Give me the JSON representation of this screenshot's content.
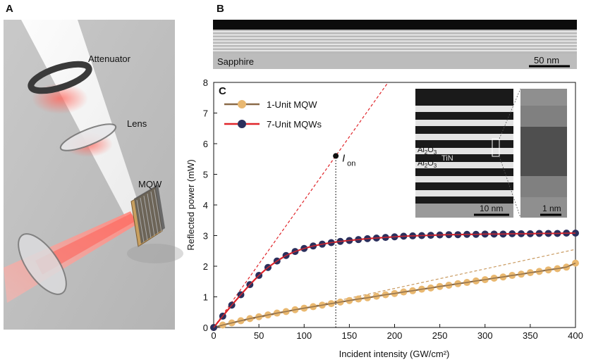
{
  "panel_a": {
    "letter": "A",
    "labels": {
      "attenuator": "Attenuator",
      "lens": "Lens",
      "mqw": "MQW"
    }
  },
  "panel_b": {
    "letter": "B",
    "substrate_label": "Sapphire",
    "scalebar_label": "50 nm"
  },
  "panel_c": {
    "letter": "C",
    "inset": {
      "layer_labels": [
        "Al2O3",
        "TiN",
        "Al2O3"
      ],
      "scalebar_left": "10 nm",
      "scalebar_right": "1 nm"
    }
  },
  "chart_data": {
    "type": "line",
    "xlabel": "Incident intensity (GW/cm²)",
    "ylabel": "Reflected power (mW)",
    "xlim": [
      0,
      400
    ],
    "ylim": [
      0,
      8
    ],
    "xticks": [
      0,
      50,
      100,
      150,
      200,
      250,
      300,
      350,
      400
    ],
    "yticks": [
      0,
      1,
      2,
      3,
      4,
      5,
      6,
      7,
      8
    ],
    "grid": false,
    "legend_position": "top-left",
    "annotation": {
      "label": "I",
      "subscript": "on",
      "x": 135,
      "y": 5.6
    },
    "series": [
      {
        "name": "1-Unit MQW",
        "color": "#e9b870",
        "line_color": "#8a6a48",
        "marker": "circle",
        "x": [
          0,
          10,
          20,
          30,
          40,
          50,
          60,
          70,
          80,
          90,
          100,
          110,
          120,
          130,
          140,
          150,
          160,
          170,
          180,
          190,
          200,
          210,
          220,
          230,
          240,
          250,
          260,
          270,
          280,
          290,
          300,
          310,
          320,
          330,
          340,
          350,
          360,
          370,
          380,
          390,
          400
        ],
        "values": [
          0,
          0.08,
          0.15,
          0.22,
          0.29,
          0.35,
          0.41,
          0.47,
          0.52,
          0.58,
          0.63,
          0.68,
          0.73,
          0.78,
          0.83,
          0.88,
          0.93,
          0.97,
          1.02,
          1.07,
          1.11,
          1.16,
          1.2,
          1.25,
          1.29,
          1.34,
          1.38,
          1.43,
          1.47,
          1.52,
          1.56,
          1.61,
          1.65,
          1.7,
          1.74,
          1.79,
          1.83,
          1.88,
          1.92,
          1.97,
          2.1
        ]
      },
      {
        "name": "7-Unit MQWs",
        "color": "#2b2f5c",
        "line_color": "#e0252a",
        "marker": "circle",
        "x": [
          0,
          10,
          20,
          30,
          40,
          50,
          60,
          70,
          80,
          90,
          100,
          110,
          120,
          130,
          140,
          150,
          160,
          170,
          180,
          190,
          200,
          210,
          220,
          230,
          240,
          250,
          260,
          270,
          280,
          290,
          300,
          310,
          320,
          330,
          340,
          350,
          360,
          370,
          380,
          390,
          400
        ],
        "values": [
          0,
          0.37,
          0.73,
          1.07,
          1.4,
          1.7,
          1.96,
          2.17,
          2.35,
          2.48,
          2.58,
          2.66,
          2.72,
          2.77,
          2.81,
          2.84,
          2.87,
          2.9,
          2.92,
          2.94,
          2.96,
          2.98,
          2.99,
          3.0,
          3.01,
          3.02,
          3.03,
          3.03,
          3.04,
          3.04,
          3.05,
          3.05,
          3.05,
          3.06,
          3.06,
          3.06,
          3.07,
          3.07,
          3.07,
          3.08,
          3.08
        ]
      }
    ],
    "reference_lines": [
      {
        "style": "dashed",
        "color": "#e0252a",
        "x": [
          0,
          400
        ],
        "values": [
          0,
          16.6
        ]
      },
      {
        "style": "dashed",
        "color": "#c99a60",
        "x": [
          0,
          400
        ],
        "values": [
          0,
          2.55
        ]
      },
      {
        "style": "dotted",
        "color": "#111111",
        "x": [
          135,
          135
        ],
        "values": [
          0,
          5.6
        ]
      }
    ]
  }
}
